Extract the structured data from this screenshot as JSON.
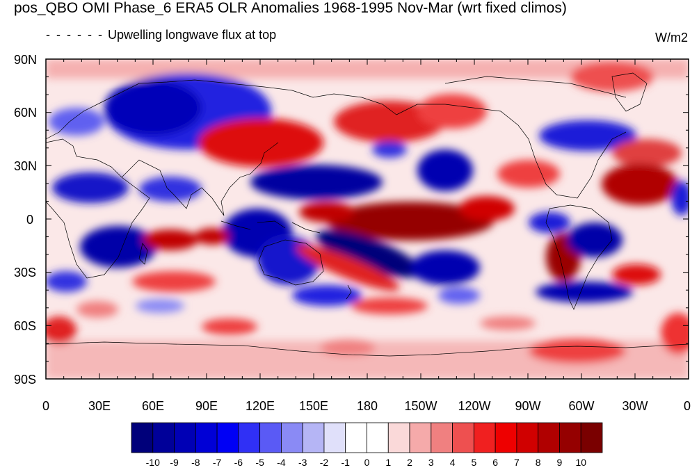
{
  "title": "pos_QBO OMI Phase_6 ERA5 OLR Anomalies 1968-1995 Nov-Mar (wrt fixed climos)",
  "subtitle": "Upwelling longwave flux at top",
  "subtitle_dashes": "- - - - - -",
  "units": "W/m2",
  "map": {
    "lat_labels": [
      "90N",
      "60N",
      "30N",
      "0",
      "30S",
      "60S",
      "90S"
    ],
    "lon_labels": [
      "0",
      "30E",
      "60E",
      "90E",
      "120E",
      "150E",
      "180",
      "150W",
      "120W",
      "90W",
      "60W",
      "30W",
      "0"
    ]
  },
  "colorbar": {
    "labels": [
      "-10",
      "-9",
      "-8",
      "-7",
      "-6",
      "-5",
      "-4",
      "-3",
      "-2",
      "-1",
      "0",
      "1",
      "2",
      "3",
      "4",
      "5",
      "6",
      "7",
      "8",
      "9",
      "10"
    ],
    "colors": [
      "#00007a",
      "#000099",
      "#0000b5",
      "#0000d6",
      "#0000f5",
      "#3030f5",
      "#5a5af5",
      "#8a8af5",
      "#b5b5f5",
      "#e0e0fa",
      "#ffffff",
      "#ffffff",
      "#fad9d9",
      "#f5aaaa",
      "#f08080",
      "#ee5050",
      "#f02020",
      "#ee0000",
      "#d00000",
      "#b00000",
      "#950000",
      "#7a0000"
    ]
  }
}
